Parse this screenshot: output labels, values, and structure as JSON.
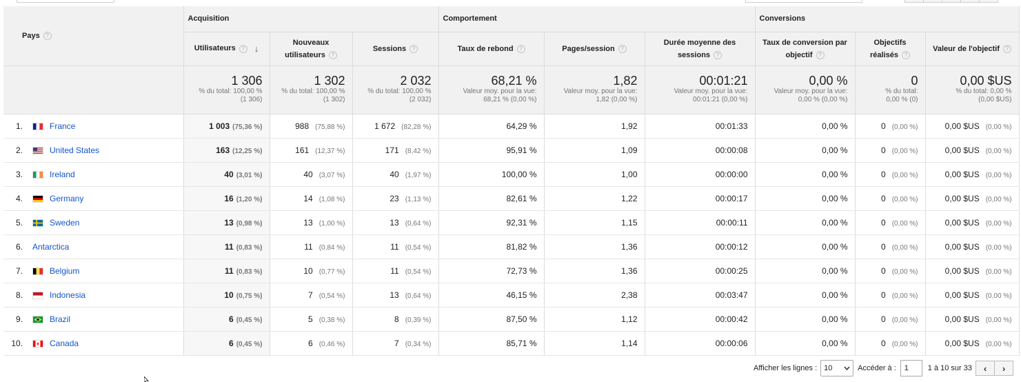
{
  "header": {
    "pays": "Pays",
    "groups": {
      "acquisition": "Acquisition",
      "comportement": "Comportement",
      "conversions": "Conversions"
    },
    "metrics": {
      "users": "Utilisateurs",
      "new_users_1": "Nouveaux",
      "new_users_2": "utilisateurs",
      "sessions": "Sessions",
      "bounce": "Taux de rebond",
      "pages": "Pages/session",
      "duration_1": "Durée moyenne des",
      "duration_2": "sessions",
      "conv_rate_1": "Taux de conversion par",
      "conv_rate_2": "objectif",
      "goals_1": "Objectifs",
      "goals_2": "réalisés",
      "goal_value": "Valeur de l'objectif"
    },
    "help_glyph": "?",
    "sort_glyph": "↓"
  },
  "totals": {
    "users": {
      "value": "1 306",
      "sub1": "% du total: 100,00 %",
      "sub2": "(1 306)"
    },
    "new_users": {
      "value": "1 302",
      "sub1": "% du total: 100,00 %",
      "sub2": "(1 302)"
    },
    "sessions": {
      "value": "2 032",
      "sub1": "% du total: 100,00 %",
      "sub2": "(2 032)"
    },
    "bounce": {
      "value": "68,21 %",
      "sub1": "Valeur moy. pour la vue:",
      "sub2": "68,21 % (0,00 %)"
    },
    "pages": {
      "value": "1,82",
      "sub1": "Valeur moy. pour la vue:",
      "sub2": "1,82 (0,00 %)"
    },
    "duration": {
      "value": "00:01:21",
      "sub1": "Valeur moy. pour la vue:",
      "sub2": "00:01:21 (0,00 %)"
    },
    "conv_rate": {
      "value": "0,00 %",
      "sub1": "Valeur moy. pour la vue:",
      "sub2": "0,00 % (0,00 %)"
    },
    "goals": {
      "value": "0",
      "sub1": "% du total:",
      "sub2": "0,00 % (0)"
    },
    "goal_value": {
      "value": "0,00 $US",
      "sub1": "% du total: 0,00 %",
      "sub2": "(0,00 $US)"
    }
  },
  "rows": [
    {
      "idx": "1.",
      "flag": "fr",
      "country": "France",
      "users": "1 003",
      "users_pct": "(75,36 %)",
      "new_users": "988",
      "new_users_pct": "(75,88 %)",
      "sessions": "1 672",
      "sessions_pct": "(82,28 %)",
      "bounce": "64,29 %",
      "pages": "1,92",
      "duration": "00:01:33",
      "conv_rate": "0,00 %",
      "goals": "0",
      "goals_pct": "(0,00 %)",
      "goal_value": "0,00 $US",
      "goal_value_pct": "(0,00 %)"
    },
    {
      "idx": "2.",
      "flag": "us",
      "country": "United States",
      "users": "163",
      "users_pct": "(12,25 %)",
      "new_users": "161",
      "new_users_pct": "(12,37 %)",
      "sessions": "171",
      "sessions_pct": "(8,42 %)",
      "bounce": "95,91 %",
      "pages": "1,09",
      "duration": "00:00:08",
      "conv_rate": "0,00 %",
      "goals": "0",
      "goals_pct": "(0,00 %)",
      "goal_value": "0,00 $US",
      "goal_value_pct": "(0,00 %)"
    },
    {
      "idx": "3.",
      "flag": "ie",
      "country": "Ireland",
      "users": "40",
      "users_pct": "(3,01 %)",
      "new_users": "40",
      "new_users_pct": "(3,07 %)",
      "sessions": "40",
      "sessions_pct": "(1,97 %)",
      "bounce": "100,00 %",
      "pages": "1,00",
      "duration": "00:00:00",
      "conv_rate": "0,00 %",
      "goals": "0",
      "goals_pct": "(0,00 %)",
      "goal_value": "0,00 $US",
      "goal_value_pct": "(0,00 %)"
    },
    {
      "idx": "4.",
      "flag": "de",
      "country": "Germany",
      "users": "16",
      "users_pct": "(1,20 %)",
      "new_users": "14",
      "new_users_pct": "(1,08 %)",
      "sessions": "23",
      "sessions_pct": "(1,13 %)",
      "bounce": "82,61 %",
      "pages": "1,22",
      "duration": "00:00:17",
      "conv_rate": "0,00 %",
      "goals": "0",
      "goals_pct": "(0,00 %)",
      "goal_value": "0,00 $US",
      "goal_value_pct": "(0,00 %)"
    },
    {
      "idx": "5.",
      "flag": "se",
      "country": "Sweden",
      "users": "13",
      "users_pct": "(0,98 %)",
      "new_users": "13",
      "new_users_pct": "(1,00 %)",
      "sessions": "13",
      "sessions_pct": "(0,64 %)",
      "bounce": "92,31 %",
      "pages": "1,15",
      "duration": "00:00:11",
      "conv_rate": "0,00 %",
      "goals": "0",
      "goals_pct": "(0,00 %)",
      "goal_value": "0,00 $US",
      "goal_value_pct": "(0,00 %)"
    },
    {
      "idx": "6.",
      "flag": "none",
      "country": "Antarctica",
      "users": "11",
      "users_pct": "(0,83 %)",
      "new_users": "11",
      "new_users_pct": "(0,84 %)",
      "sessions": "11",
      "sessions_pct": "(0,54 %)",
      "bounce": "81,82 %",
      "pages": "1,36",
      "duration": "00:00:12",
      "conv_rate": "0,00 %",
      "goals": "0",
      "goals_pct": "(0,00 %)",
      "goal_value": "0,00 $US",
      "goal_value_pct": "(0,00 %)"
    },
    {
      "idx": "7.",
      "flag": "be",
      "country": "Belgium",
      "users": "11",
      "users_pct": "(0,83 %)",
      "new_users": "10",
      "new_users_pct": "(0,77 %)",
      "sessions": "11",
      "sessions_pct": "(0,54 %)",
      "bounce": "72,73 %",
      "pages": "1,36",
      "duration": "00:00:25",
      "conv_rate": "0,00 %",
      "goals": "0",
      "goals_pct": "(0,00 %)",
      "goal_value": "0,00 $US",
      "goal_value_pct": "(0,00 %)"
    },
    {
      "idx": "8.",
      "flag": "id",
      "country": "Indonesia",
      "users": "10",
      "users_pct": "(0,75 %)",
      "new_users": "7",
      "new_users_pct": "(0,54 %)",
      "sessions": "13",
      "sessions_pct": "(0,64 %)",
      "bounce": "46,15 %",
      "pages": "2,38",
      "duration": "00:03:47",
      "conv_rate": "0,00 %",
      "goals": "0",
      "goals_pct": "(0,00 %)",
      "goal_value": "0,00 $US",
      "goal_value_pct": "(0,00 %)"
    },
    {
      "idx": "9.",
      "flag": "br",
      "country": "Brazil",
      "users": "6",
      "users_pct": "(0,45 %)",
      "new_users": "5",
      "new_users_pct": "(0,38 %)",
      "sessions": "8",
      "sessions_pct": "(0,39 %)",
      "bounce": "87,50 %",
      "pages": "1,12",
      "duration": "00:00:42",
      "conv_rate": "0,00 %",
      "goals": "0",
      "goals_pct": "(0,00 %)",
      "goal_value": "0,00 $US",
      "goal_value_pct": "(0,00 %)"
    },
    {
      "idx": "10.",
      "flag": "ca",
      "country": "Canada",
      "users": "6",
      "users_pct": "(0,45 %)",
      "new_users": "6",
      "new_users_pct": "(0,46 %)",
      "sessions": "7",
      "sessions_pct": "(0,34 %)",
      "bounce": "85,71 %",
      "pages": "1,14",
      "duration": "00:00:06",
      "conv_rate": "0,00 %",
      "goals": "0",
      "goals_pct": "(0,00 %)",
      "goal_value": "0,00 $US",
      "goal_value_pct": "(0,00 %)"
    }
  ],
  "footer": {
    "rows_label": "Afficher les lignes :",
    "rows_value": "10",
    "goto_label": "Accéder à :",
    "goto_value": "1",
    "range": "1 à 10 sur 33",
    "prev": "‹",
    "next": "›"
  },
  "flag_colors": {
    "fr": "#002395 #ffffff #ed2939",
    "us": "#3c3b6e #b22234",
    "ie": "#169b62 #ffffff #ff883e",
    "de": "#000000 #dd0000 #ffce00",
    "se": "#006aa7 #fecc00",
    "be": "#000000 #fae042 #ed2939",
    "id": "#ce1126 #ffffff",
    "br": "#009c3b #ffdf00 #002776",
    "ca": "#ff0000 #ffffff"
  }
}
